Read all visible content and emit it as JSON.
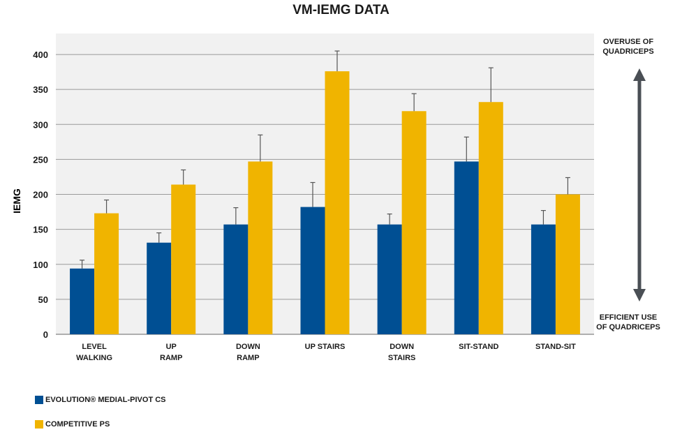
{
  "chart_data": {
    "type": "bar",
    "title": "VM-IEMG DATA",
    "ylabel": "IEMG",
    "xlabel": "",
    "ylim": [
      0,
      430
    ],
    "yticks": [
      0,
      50,
      100,
      150,
      200,
      250,
      300,
      350,
      400
    ],
    "grid": true,
    "categories": [
      "LEVEL\nWALKING",
      "UP\nRAMP",
      "DOWN\nRAMP",
      "UP STAIRS",
      "DOWN\nSTAIRS",
      "SIT-STAND",
      "STAND-SIT"
    ],
    "series": [
      {
        "name": "EVOLUTION® MEDIAL-PIVOT CS",
        "color": "#004f93",
        "values": [
          94,
          131,
          157,
          182,
          157,
          247,
          157
        ],
        "error": [
          12,
          14,
          24,
          35,
          15,
          35,
          20
        ]
      },
      {
        "name": "COMPETITIVE PS",
        "color": "#f0b400",
        "values": [
          173,
          214,
          247,
          376,
          319,
          332,
          200
        ],
        "error": [
          19,
          21,
          38,
          29,
          25,
          49,
          24
        ]
      }
    ],
    "legend_position": "bottom-left",
    "annotations": {
      "top": "OVERUSE OF\nQUADRICEPS",
      "bottom": "EFFICIENT USE\nOF QUADRICEPS"
    }
  },
  "colors": {
    "grid": "#9a9a9a",
    "plot_background": "#f1f1f1",
    "arrow": "#4a4f55",
    "error_bar": "#555555"
  }
}
